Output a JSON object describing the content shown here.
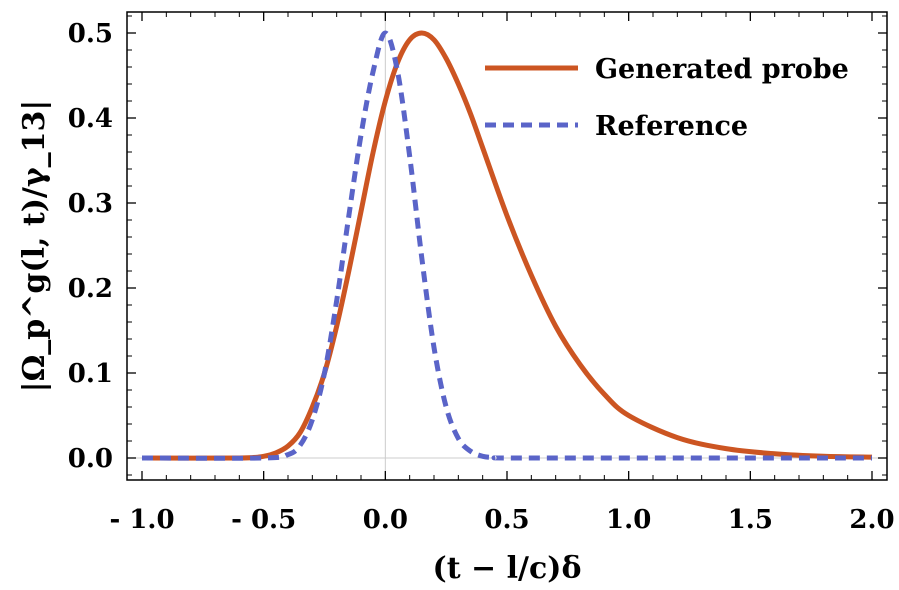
{
  "chart_data": {
    "type": "line",
    "xlabel": "(t − l/c)δ",
    "ylabel": "|Ω_p^g(l, t)/γ_13|",
    "xlim": [
      -1.0,
      2.0
    ],
    "ylim": [
      0.0,
      0.5
    ],
    "x_ticks": [
      "- 1.0",
      "- 0.5",
      "0.0",
      "0.5",
      "1.0",
      "1.5",
      "2.0"
    ],
    "y_ticks": [
      "0.0",
      "0.1",
      "0.2",
      "0.3",
      "0.4",
      "0.5"
    ],
    "legend_position": "top-right",
    "grid": false,
    "series": [
      {
        "name": "Generated probe",
        "color": "#cc5522",
        "style": "solid",
        "x": [
          -1.0,
          -0.6,
          -0.5,
          -0.45,
          -0.4,
          -0.35,
          -0.3,
          -0.25,
          -0.2,
          -0.15,
          -0.1,
          -0.05,
          0.0,
          0.05,
          0.1,
          0.15,
          0.2,
          0.25,
          0.3,
          0.35,
          0.4,
          0.5,
          0.6,
          0.7,
          0.8,
          0.9,
          1.0,
          1.2,
          1.4,
          1.6,
          1.8,
          2.0
        ],
        "y": [
          0.0,
          0.0,
          0.002,
          0.006,
          0.014,
          0.03,
          0.06,
          0.1,
          0.155,
          0.22,
          0.29,
          0.36,
          0.42,
          0.465,
          0.492,
          0.5,
          0.492,
          0.47,
          0.44,
          0.405,
          0.365,
          0.285,
          0.215,
          0.155,
          0.11,
          0.075,
          0.05,
          0.024,
          0.011,
          0.005,
          0.002,
          0.001
        ]
      },
      {
        "name": "Reference",
        "color": "#5a64c8",
        "style": "dashed",
        "x": [
          -1.0,
          -0.5,
          -0.4,
          -0.35,
          -0.3,
          -0.25,
          -0.2,
          -0.15,
          -0.1,
          -0.05,
          0.0,
          0.05,
          0.1,
          0.15,
          0.2,
          0.25,
          0.3,
          0.35,
          0.4,
          0.45,
          0.5,
          1.0,
          2.0
        ],
        "y": [
          0.0,
          0.0,
          0.004,
          0.015,
          0.045,
          0.1,
          0.185,
          0.285,
          0.38,
          0.455,
          0.5,
          0.455,
          0.355,
          0.235,
          0.13,
          0.06,
          0.023,
          0.008,
          0.002,
          0.0005,
          0.0,
          0.0,
          0.0
        ]
      }
    ]
  }
}
